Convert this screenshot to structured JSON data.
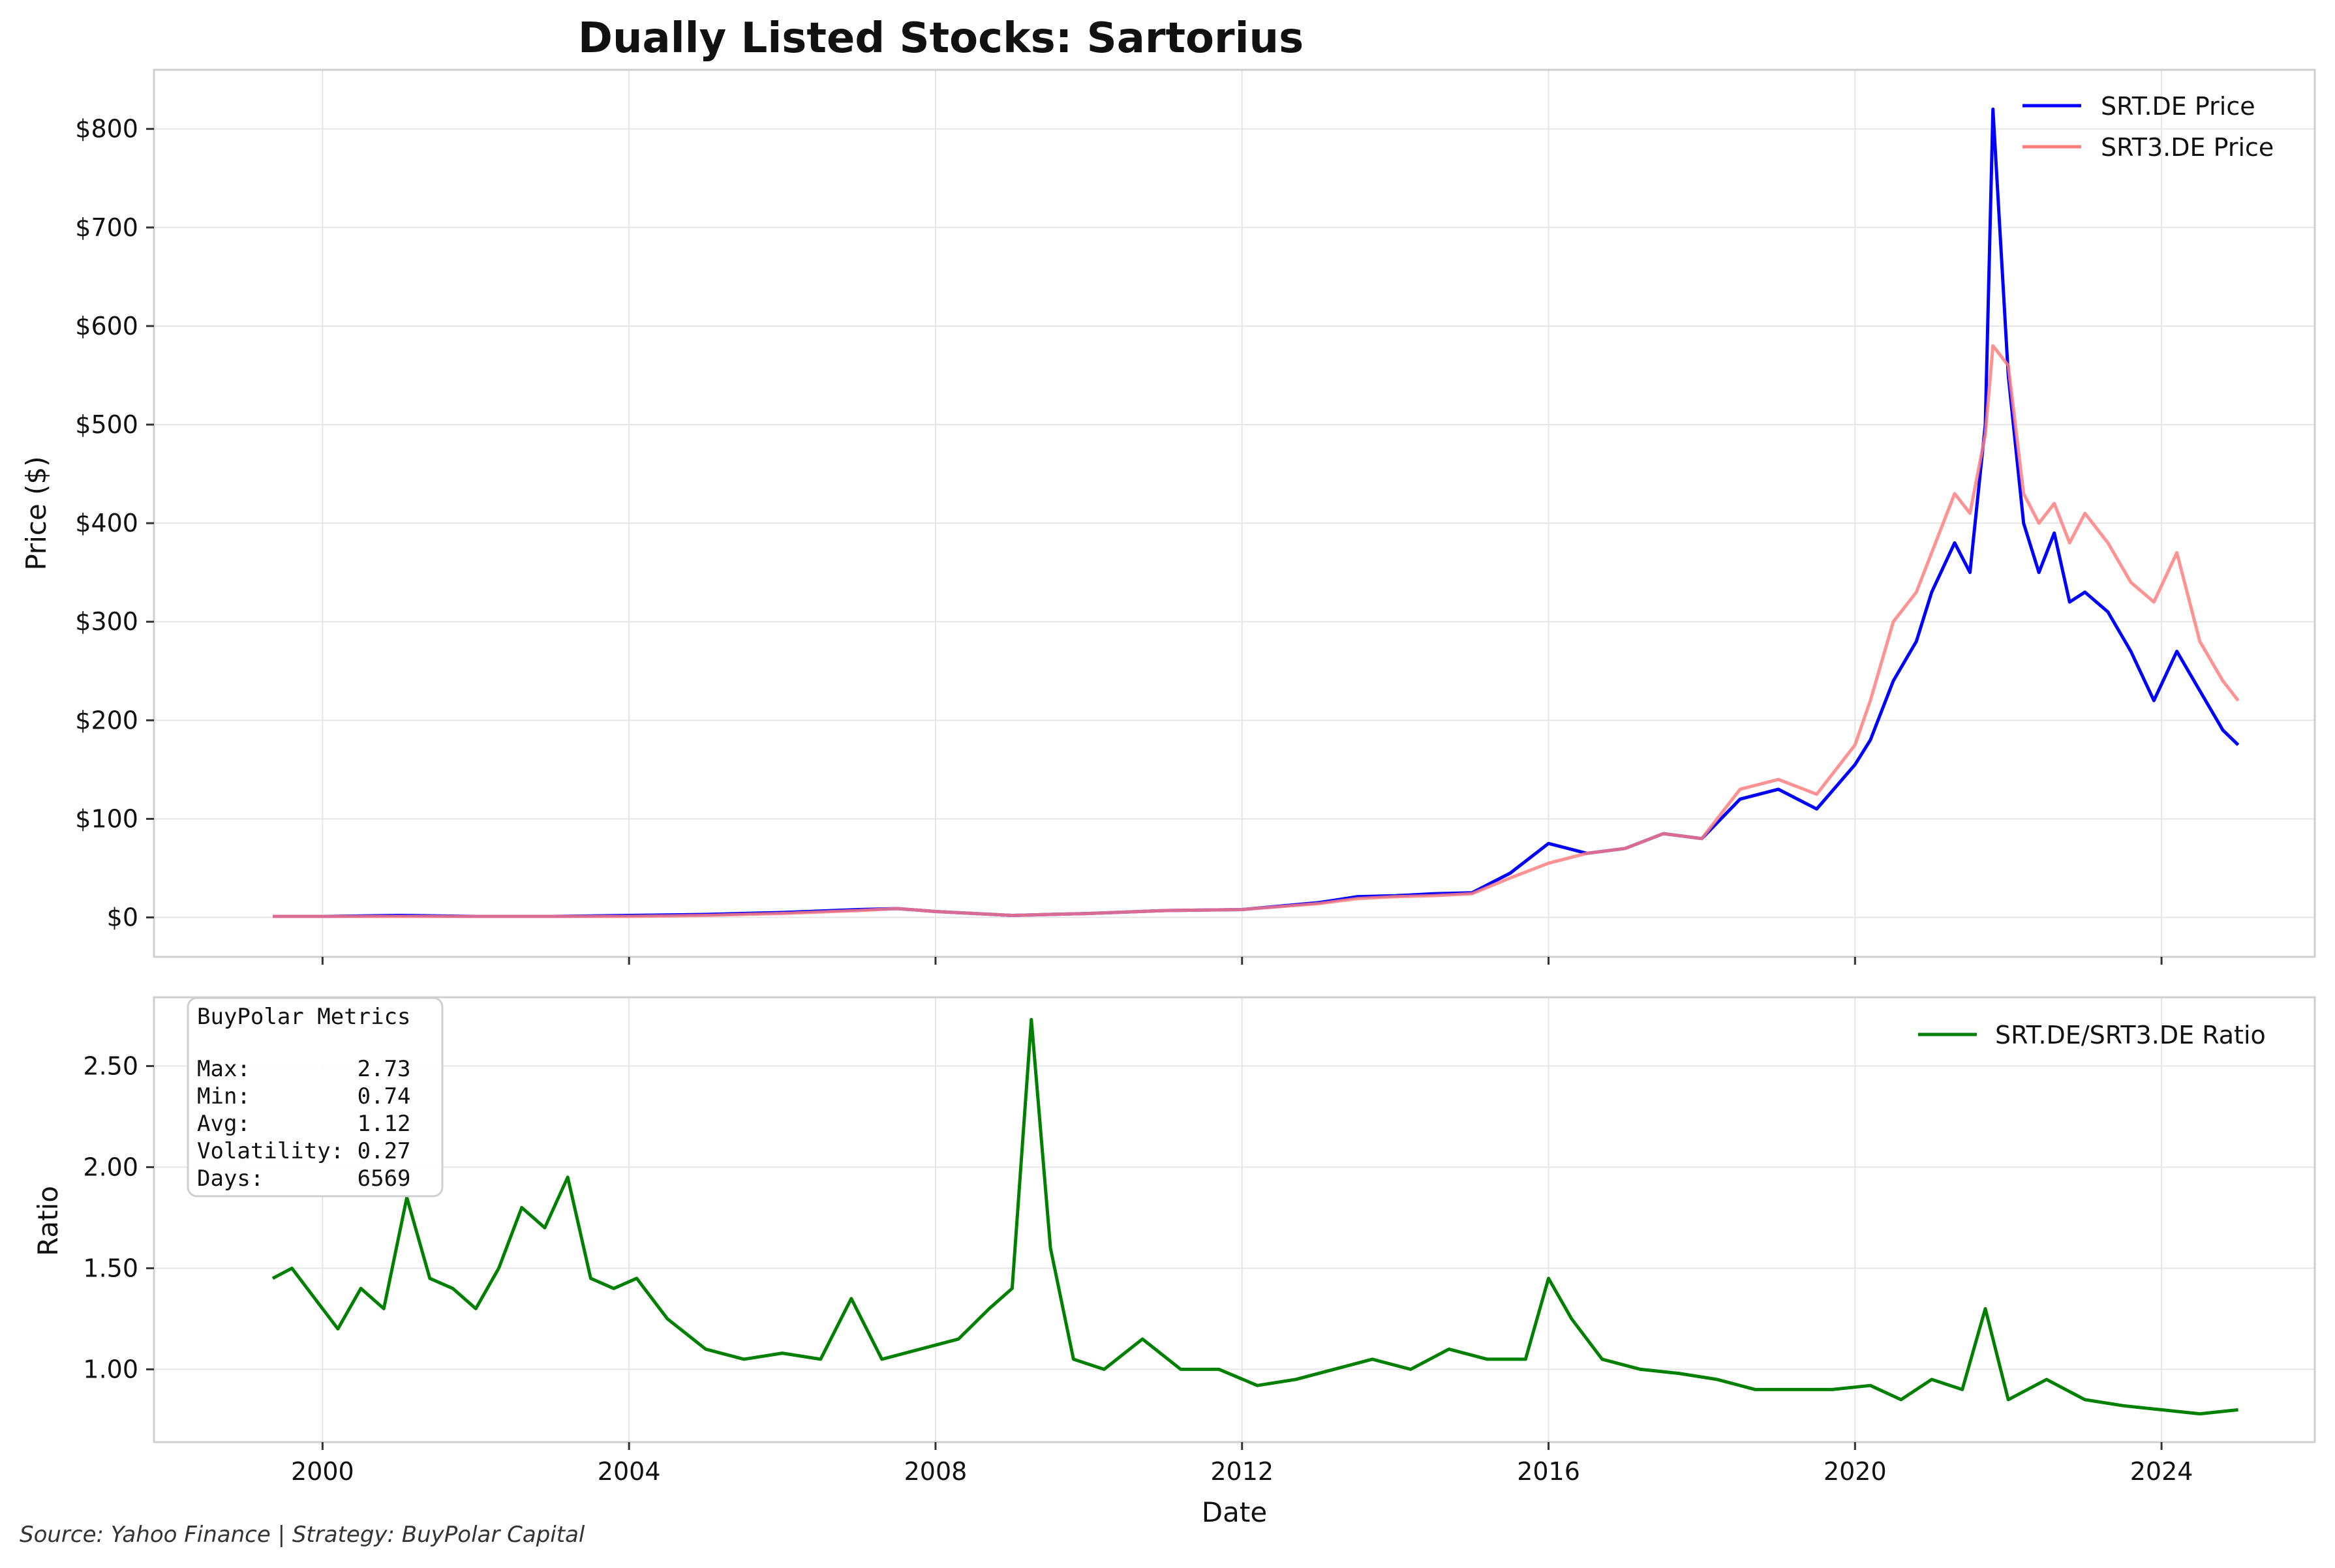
{
  "chart_data": [
    {
      "type": "line",
      "title": "Dually Listed Stocks: Sartorius",
      "ylabel": "Price ($)",
      "xlabel": "",
      "xlim": [
        1997.8,
        2026.0
      ],
      "ylim": [
        -40,
        860
      ],
      "x_ticks": [
        2000,
        2004,
        2008,
        2012,
        2016,
        2020,
        2024
      ],
      "y_ticks": [
        0,
        100,
        200,
        300,
        400,
        500,
        600,
        700,
        800
      ],
      "y_tick_labels": [
        "$0",
        "$100",
        "$200",
        "$300",
        "$400",
        "$500",
        "$600",
        "$700",
        "$800"
      ],
      "grid": true,
      "legend_position": "top-right",
      "series": [
        {
          "name": "SRT.DE Price",
          "color": "#0000ff",
          "x": [
            1999.35,
            2000,
            2001,
            2002,
            2003,
            2004,
            2005,
            2006,
            2007,
            2007.5,
            2008,
            2009,
            2010,
            2011,
            2012,
            2013,
            2013.5,
            2014,
            2014.5,
            2015,
            2015.5,
            2016,
            2016.5,
            2017,
            2017.5,
            2018,
            2018.5,
            2019,
            2019.5,
            2020,
            2020.2,
            2020.5,
            2020.8,
            2021,
            2021.3,
            2021.5,
            2021.7,
            2021.8,
            2022,
            2022.2,
            2022.4,
            2022.6,
            2022.8,
            2023,
            2023.3,
            2023.6,
            2023.9,
            2024.2,
            2024.5,
            2024.8,
            2025.0
          ],
          "values": [
            1,
            1,
            2,
            1,
            1,
            2,
            3,
            5,
            8,
            9,
            6,
            2,
            4,
            7,
            8,
            15,
            21,
            22,
            24,
            25,
            45,
            75,
            65,
            70,
            85,
            80,
            120,
            130,
            110,
            155,
            180,
            240,
            280,
            330,
            380,
            350,
            500,
            820,
            550,
            400,
            350,
            390,
            320,
            330,
            310,
            270,
            220,
            270,
            230,
            190,
            175
          ]
        },
        {
          "name": "SRT3.DE Price",
          "color": "#ff7f7f",
          "x": [
            1999.35,
            2000,
            2001,
            2002,
            2003,
            2004,
            2005,
            2006,
            2007,
            2007.5,
            2008,
            2009,
            2010,
            2011,
            2012,
            2013,
            2013.5,
            2014,
            2014.5,
            2015,
            2015.5,
            2016,
            2016.5,
            2017,
            2017.5,
            2018,
            2018.5,
            2019,
            2019.5,
            2020,
            2020.2,
            2020.5,
            2020.8,
            2021,
            2021.3,
            2021.5,
            2021.7,
            2021.8,
            2022,
            2022.2,
            2022.4,
            2022.6,
            2022.8,
            2023,
            2023.3,
            2023.6,
            2023.9,
            2024.2,
            2024.5,
            2024.8,
            2025.0
          ],
          "values": [
            1,
            1,
            1,
            1,
            1,
            1,
            2,
            4,
            7,
            9,
            6,
            2,
            4,
            7,
            8,
            14,
            19,
            21,
            22,
            24,
            40,
            55,
            65,
            70,
            85,
            80,
            130,
            140,
            125,
            175,
            220,
            300,
            330,
            370,
            430,
            410,
            490,
            580,
            560,
            430,
            400,
            420,
            380,
            410,
            380,
            340,
            320,
            370,
            280,
            240,
            220
          ]
        }
      ]
    },
    {
      "type": "line",
      "title": "",
      "xlabel": "Date",
      "ylabel": "Ratio",
      "xlim": [
        1997.8,
        2026.0
      ],
      "ylim": [
        0.64,
        2.84
      ],
      "x_ticks": [
        2000,
        2004,
        2008,
        2012,
        2016,
        2020,
        2024
      ],
      "x_tick_labels": [
        "2000",
        "2004",
        "2008",
        "2012",
        "2016",
        "2020",
        "2024"
      ],
      "y_ticks": [
        1.0,
        1.5,
        2.0,
        2.5
      ],
      "y_tick_labels": [
        "1.00",
        "1.50",
        "2.00",
        "2.50"
      ],
      "grid": true,
      "legend_position": "top-right",
      "series": [
        {
          "name": "SRT.DE/SRT3.DE Ratio",
          "color": "#008000",
          "x": [
            1999.35,
            1999.6,
            1999.9,
            2000.2,
            2000.5,
            2000.8,
            2001.1,
            2001.4,
            2001.7,
            2002.0,
            2002.3,
            2002.6,
            2002.9,
            2003.2,
            2003.5,
            2003.8,
            2004.1,
            2004.5,
            2005.0,
            2005.5,
            2006.0,
            2006.5,
            2006.9,
            2007.3,
            2007.8,
            2008.3,
            2008.7,
            2009.0,
            2009.25,
            2009.5,
            2009.8,
            2010.2,
            2010.7,
            2011.2,
            2011.7,
            2012.2,
            2012.7,
            2013.2,
            2013.7,
            2014.2,
            2014.7,
            2015.2,
            2015.7,
            2016.0,
            2016.3,
            2016.7,
            2017.2,
            2017.7,
            2018.2,
            2018.7,
            2019.2,
            2019.7,
            2020.2,
            2020.6,
            2021.0,
            2021.4,
            2021.7,
            2022.0,
            2022.5,
            2023.0,
            2023.5,
            2024.0,
            2024.5,
            2025.0
          ],
          "values": [
            1.45,
            1.5,
            1.35,
            1.2,
            1.4,
            1.3,
            1.85,
            1.45,
            1.4,
            1.3,
            1.5,
            1.8,
            1.7,
            1.95,
            1.45,
            1.4,
            1.45,
            1.25,
            1.1,
            1.05,
            1.08,
            1.05,
            1.35,
            1.05,
            1.1,
            1.15,
            1.3,
            1.4,
            2.73,
            1.6,
            1.05,
            1.0,
            1.15,
            1.0,
            1.0,
            0.92,
            0.95,
            1.0,
            1.05,
            1.0,
            1.1,
            1.05,
            1.05,
            1.45,
            1.25,
            1.05,
            1.0,
            0.98,
            0.95,
            0.9,
            0.9,
            0.9,
            0.92,
            0.85,
            0.95,
            0.9,
            1.3,
            0.85,
            0.95,
            0.85,
            0.82,
            0.8,
            0.78,
            0.8
          ]
        }
      ]
    }
  ],
  "metrics_box": {
    "heading": "BuyPolar Metrics",
    "lines": [
      "Max:        2.73",
      "Min:        0.74",
      "Avg:        1.12",
      "Volatility: 0.27",
      "Days:       6569"
    ]
  },
  "source_note": "Source: Yahoo Finance | Strategy: BuyPolar Capital"
}
